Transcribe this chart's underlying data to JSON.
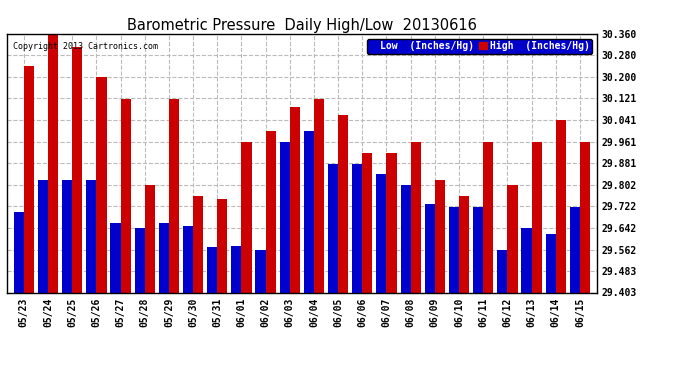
{
  "title": "Barometric Pressure  Daily High/Low  20130616",
  "copyright": "Copyright 2013 Cartronics.com",
  "legend_low": "Low  (Inches/Hg)",
  "legend_high": "High  (Inches/Hg)",
  "dates": [
    "05/23",
    "05/24",
    "05/25",
    "05/26",
    "05/27",
    "05/28",
    "05/29",
    "05/30",
    "05/31",
    "06/01",
    "06/02",
    "06/03",
    "06/04",
    "06/05",
    "06/06",
    "06/07",
    "06/08",
    "06/09",
    "06/10",
    "06/11",
    "06/12",
    "06/13",
    "06/14",
    "06/15"
  ],
  "low_values": [
    29.7,
    29.82,
    29.82,
    29.82,
    29.66,
    29.64,
    29.66,
    29.65,
    29.57,
    29.575,
    29.56,
    29.96,
    30.0,
    29.88,
    29.88,
    29.84,
    29.8,
    29.73,
    29.72,
    29.72,
    29.56,
    29.64,
    29.62,
    29.72
  ],
  "high_values": [
    30.24,
    30.36,
    30.31,
    30.2,
    30.12,
    29.8,
    30.12,
    29.76,
    29.75,
    29.96,
    30.0,
    30.09,
    30.12,
    30.06,
    29.92,
    29.92,
    29.96,
    29.82,
    29.76,
    29.96,
    29.8,
    29.96,
    30.041,
    29.961
  ],
  "ylim_min": 29.403,
  "ylim_max": 30.36,
  "yticks": [
    29.403,
    29.483,
    29.562,
    29.642,
    29.722,
    29.802,
    29.881,
    29.961,
    30.041,
    30.121,
    30.2,
    30.28,
    30.36
  ],
  "low_color": "#0000cc",
  "high_color": "#cc0000",
  "background_color": "#ffffff",
  "plot_bg_color": "#ffffff",
  "grid_color": "#bbbbbb",
  "title_fontsize": 10.5,
  "tick_fontsize": 7,
  "bar_width": 0.42
}
